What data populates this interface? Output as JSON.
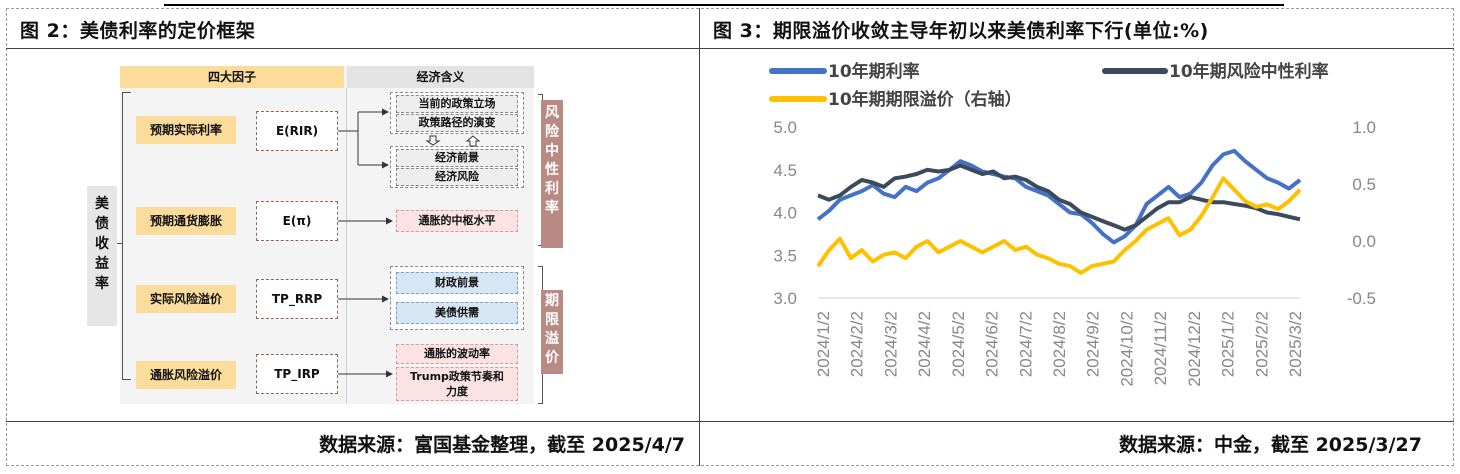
{
  "left": {
    "title": "图 2：美债利率的定价框架",
    "source": "数据来源：富国基金整理，截至 2025/4/7",
    "header_factors": "四大因子",
    "header_meaning": "经济含义",
    "y_label": "美债收益率",
    "factors": [
      {
        "name": "预期实际利率",
        "code": "E(RIR)"
      },
      {
        "name": "预期通货膨胀",
        "code": "E(π)"
      },
      {
        "name": "实际风险溢价",
        "code": "TP_RRP"
      },
      {
        "name": "通胀风险溢价",
        "code": "TP_IRP"
      }
    ],
    "meanings": {
      "policy_now": "当前的政策立场",
      "policy_path": "政策路径的演变",
      "econ_outlook": "经济前景",
      "econ_risk": "经济风险",
      "infl_center": "通胀的中枢水平",
      "fiscal": "财政前景",
      "supply": "美债供需",
      "infl_vol": "通胀的波动率",
      "trump": "Trump政策节奏和力度"
    },
    "bracket_risk_neutral": "风险中性利率",
    "bracket_term_premium": "期限溢价"
  },
  "right": {
    "title": "图 3：期限溢价收敛主导年初以来美债利率下行(单位:%)",
    "source": "数据来源：中金，截至 2025/3/27"
  },
  "colors": {
    "blue": "#4472c4",
    "navy": "#3b4a5c",
    "yellow": "#ffc000"
  },
  "chart_data": {
    "type": "line",
    "x_ticks": [
      "2024/1/2",
      "2024/2/2",
      "2024/3/2",
      "2024/4/2",
      "2024/5/2",
      "2024/6/2",
      "2024/7/2",
      "2024/8/2",
      "2024/9/2",
      "2024/10/2",
      "2024/11/2",
      "2024/12/2",
      "2025/1/2",
      "2025/2/2",
      "2025/3/2"
    ],
    "y_left_ticks": [
      "3.0",
      "3.5",
      "4.0",
      "4.5",
      "5.0"
    ],
    "y_right_ticks": [
      "-0.5",
      "0.0",
      "0.5",
      "1.0"
    ],
    "ylim_left": [
      3.0,
      5.0
    ],
    "ylim_right": [
      -0.5,
      1.0
    ],
    "legend_placement": "top",
    "series": [
      {
        "name": "10年期利率",
        "axis": "left",
        "color": "#4472c4",
        "values": [
          3.92,
          4.02,
          4.15,
          4.2,
          4.25,
          4.32,
          4.22,
          4.18,
          4.3,
          4.25,
          4.35,
          4.4,
          4.5,
          4.6,
          4.55,
          4.48,
          4.45,
          4.42,
          4.4,
          4.3,
          4.25,
          4.2,
          4.1,
          4.0,
          3.98,
          3.88,
          3.75,
          3.65,
          3.72,
          3.85,
          4.1,
          4.2,
          4.3,
          4.18,
          4.22,
          4.35,
          4.55,
          4.68,
          4.72,
          4.6,
          4.5,
          4.4,
          4.35,
          4.28,
          4.38
        ]
      },
      {
        "name": "10年期风险中性利率",
        "axis": "left",
        "color": "#3b4a5c",
        "values": [
          4.2,
          4.15,
          4.2,
          4.3,
          4.38,
          4.35,
          4.3,
          4.4,
          4.42,
          4.45,
          4.5,
          4.48,
          4.5,
          4.55,
          4.5,
          4.45,
          4.48,
          4.4,
          4.42,
          4.38,
          4.3,
          4.25,
          4.15,
          4.1,
          4.0,
          3.95,
          3.9,
          3.85,
          3.8,
          3.85,
          3.95,
          4.05,
          4.12,
          4.12,
          4.18,
          4.15,
          4.12,
          4.12,
          4.1,
          4.08,
          4.05,
          4.0,
          3.98,
          3.95,
          3.92
        ]
      },
      {
        "name": "10年期期限溢价（右轴）",
        "axis": "right",
        "color": "#ffc000",
        "values": [
          -0.22,
          -0.08,
          0.02,
          -0.15,
          -0.08,
          -0.18,
          -0.12,
          -0.1,
          -0.15,
          -0.05,
          0.0,
          -0.1,
          -0.05,
          0.0,
          -0.05,
          -0.1,
          -0.05,
          0.0,
          -0.08,
          -0.05,
          -0.12,
          -0.15,
          -0.2,
          -0.22,
          -0.28,
          -0.22,
          -0.2,
          -0.18,
          -0.08,
          0.0,
          0.1,
          0.15,
          0.2,
          0.05,
          0.1,
          0.22,
          0.38,
          0.55,
          0.45,
          0.35,
          0.3,
          0.32,
          0.28,
          0.35,
          0.45
        ]
      }
    ]
  }
}
